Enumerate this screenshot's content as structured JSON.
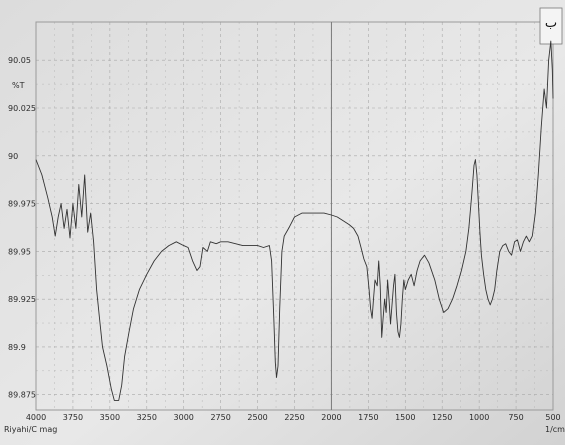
{
  "chart_data": {
    "type": "line",
    "title": "",
    "ylabel": "%T",
    "xlabel": "1/cm",
    "footer_label": "Riyahi/C mag",
    "corner_mark": "ب",
    "xlim": [
      4000,
      500
    ],
    "ylim": [
      89.867,
      90.07
    ],
    "x_reversed": true,
    "grid": true,
    "legend": "none",
    "x_ticks": [
      {
        "v": 4000,
        "label": "4000"
      },
      {
        "v": 3750,
        "label": "3750"
      },
      {
        "v": 3500,
        "label": "3500"
      },
      {
        "v": 3250,
        "label": "3250"
      },
      {
        "v": 3000,
        "label": "3000"
      },
      {
        "v": 2750,
        "label": "2750"
      },
      {
        "v": 2500,
        "label": "2500"
      },
      {
        "v": 2250,
        "label": "2250"
      },
      {
        "v": 2000,
        "label": "2000"
      },
      {
        "v": 1750,
        "label": "1750"
      },
      {
        "v": 1500,
        "label": "1500"
      },
      {
        "v": 1250,
        "label": "1250"
      },
      {
        "v": 1000,
        "label": "1000"
      },
      {
        "v": 750,
        "label": "750"
      },
      {
        "v": 500,
        "label": "500"
      }
    ],
    "y_ticks": [
      {
        "v": 90.05,
        "label": "90.05"
      },
      {
        "v": 90.025,
        "label": "90.025"
      },
      {
        "v": 90.0,
        "label": "90"
      },
      {
        "v": 89.975,
        "label": "89.975"
      },
      {
        "v": 89.95,
        "label": "89.95"
      },
      {
        "v": 89.925,
        "label": "89.925"
      },
      {
        "v": 89.9,
        "label": "89.9"
      },
      {
        "v": 89.875,
        "label": "89.875"
      }
    ],
    "series": [
      {
        "color": "#333333",
        "points": [
          [
            4000,
            89.998
          ],
          [
            3960,
            89.99
          ],
          [
            3920,
            89.978
          ],
          [
            3890,
            89.968
          ],
          [
            3870,
            89.958
          ],
          [
            3850,
            89.968
          ],
          [
            3830,
            89.975
          ],
          [
            3810,
            89.962
          ],
          [
            3790,
            89.972
          ],
          [
            3770,
            89.957
          ],
          [
            3750,
            89.975
          ],
          [
            3730,
            89.962
          ],
          [
            3710,
            89.985
          ],
          [
            3690,
            89.968
          ],
          [
            3670,
            89.99
          ],
          [
            3650,
            89.96
          ],
          [
            3630,
            89.97
          ],
          [
            3610,
            89.955
          ],
          [
            3590,
            89.93
          ],
          [
            3570,
            89.915
          ],
          [
            3550,
            89.9
          ],
          [
            3520,
            89.89
          ],
          [
            3490,
            89.878
          ],
          [
            3470,
            89.872
          ],
          [
            3440,
            89.872
          ],
          [
            3420,
            89.88
          ],
          [
            3400,
            89.895
          ],
          [
            3370,
            89.908
          ],
          [
            3340,
            89.92
          ],
          [
            3300,
            89.93
          ],
          [
            3250,
            89.938
          ],
          [
            3200,
            89.945
          ],
          [
            3150,
            89.95
          ],
          [
            3100,
            89.953
          ],
          [
            3050,
            89.955
          ],
          [
            3000,
            89.953
          ],
          [
            2970,
            89.952
          ],
          [
            2940,
            89.945
          ],
          [
            2910,
            89.94
          ],
          [
            2890,
            89.942
          ],
          [
            2870,
            89.952
          ],
          [
            2840,
            89.95
          ],
          [
            2820,
            89.955
          ],
          [
            2780,
            89.954
          ],
          [
            2750,
            89.955
          ],
          [
            2700,
            89.955
          ],
          [
            2650,
            89.954
          ],
          [
            2600,
            89.953
          ],
          [
            2550,
            89.953
          ],
          [
            2500,
            89.953
          ],
          [
            2460,
            89.952
          ],
          [
            2420,
            89.953
          ],
          [
            2405,
            89.945
          ],
          [
            2390,
            89.915
          ],
          [
            2380,
            89.892
          ],
          [
            2372,
            89.884
          ],
          [
            2362,
            89.89
          ],
          [
            2350,
            89.92
          ],
          [
            2335,
            89.95
          ],
          [
            2320,
            89.958
          ],
          [
            2290,
            89.962
          ],
          [
            2250,
            89.968
          ],
          [
            2200,
            89.97
          ],
          [
            2150,
            89.97
          ],
          [
            2100,
            89.97
          ],
          [
            2050,
            89.97
          ],
          [
            2000,
            89.969
          ],
          [
            1960,
            89.968
          ],
          [
            1920,
            89.966
          ],
          [
            1880,
            89.964
          ],
          [
            1850,
            89.962
          ],
          [
            1820,
            89.958
          ],
          [
            1800,
            89.952
          ],
          [
            1780,
            89.946
          ],
          [
            1760,
            89.942
          ],
          [
            1745,
            89.93
          ],
          [
            1735,
            89.92
          ],
          [
            1725,
            89.915
          ],
          [
            1715,
            89.925
          ],
          [
            1705,
            89.935
          ],
          [
            1690,
            89.932
          ],
          [
            1680,
            89.945
          ],
          [
            1670,
            89.932
          ],
          [
            1660,
            89.905
          ],
          [
            1650,
            89.915
          ],
          [
            1640,
            89.925
          ],
          [
            1630,
            89.918
          ],
          [
            1620,
            89.935
          ],
          [
            1610,
            89.925
          ],
          [
            1600,
            89.912
          ],
          [
            1590,
            89.922
          ],
          [
            1580,
            89.932
          ],
          [
            1570,
            89.938
          ],
          [
            1560,
            89.918
          ],
          [
            1550,
            89.908
          ],
          [
            1540,
            89.905
          ],
          [
            1530,
            89.912
          ],
          [
            1520,
            89.925
          ],
          [
            1510,
            89.935
          ],
          [
            1500,
            89.93
          ],
          [
            1480,
            89.935
          ],
          [
            1460,
            89.938
          ],
          [
            1440,
            89.932
          ],
          [
            1420,
            89.94
          ],
          [
            1400,
            89.945
          ],
          [
            1370,
            89.948
          ],
          [
            1340,
            89.944
          ],
          [
            1300,
            89.935
          ],
          [
            1270,
            89.925
          ],
          [
            1240,
            89.918
          ],
          [
            1210,
            89.92
          ],
          [
            1180,
            89.925
          ],
          [
            1150,
            89.932
          ],
          [
            1120,
            89.94
          ],
          [
            1090,
            89.95
          ],
          [
            1070,
            89.962
          ],
          [
            1050,
            89.98
          ],
          [
            1035,
            89.995
          ],
          [
            1025,
            89.998
          ],
          [
            1015,
            89.99
          ],
          [
            1005,
            89.975
          ],
          [
            995,
            89.96
          ],
          [
            985,
            89.948
          ],
          [
            970,
            89.938
          ],
          [
            955,
            89.93
          ],
          [
            940,
            89.925
          ],
          [
            925,
            89.922
          ],
          [
            910,
            89.925
          ],
          [
            895,
            89.93
          ],
          [
            880,
            89.94
          ],
          [
            860,
            89.95
          ],
          [
            840,
            89.953
          ],
          [
            820,
            89.954
          ],
          [
            800,
            89.95
          ],
          [
            780,
            89.948
          ],
          [
            760,
            89.955
          ],
          [
            740,
            89.956
          ],
          [
            720,
            89.95
          ],
          [
            700,
            89.955
          ],
          [
            680,
            89.958
          ],
          [
            660,
            89.955
          ],
          [
            640,
            89.958
          ],
          [
            620,
            89.97
          ],
          [
            600,
            89.99
          ],
          [
            580,
            90.015
          ],
          [
            560,
            90.035
          ],
          [
            545,
            90.025
          ],
          [
            530,
            90.05
          ],
          [
            515,
            90.06
          ],
          [
            505,
            90.045
          ],
          [
            500,
            90.03
          ]
        ]
      }
    ]
  }
}
